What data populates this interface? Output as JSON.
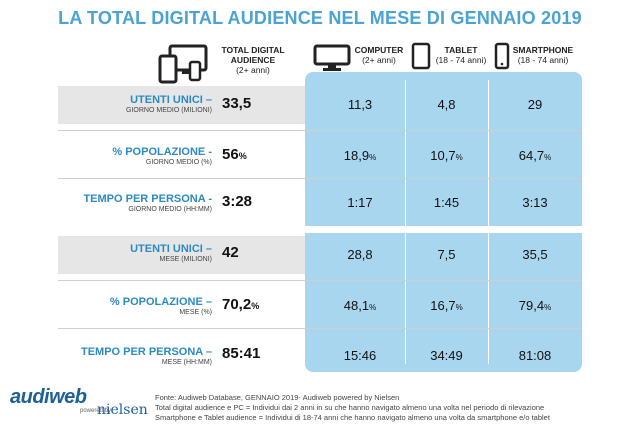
{
  "title": "LA TOTAL DIGITAL AUDIENCE NEL MESE DI GENNAIO 2019",
  "headers": {
    "total": {
      "main": "TOTAL DIGITAL AUDIENCE",
      "sub": "(2+ anni)"
    },
    "computer": {
      "main": "COMPUTER",
      "sub": "(2+ anni)"
    },
    "tablet": {
      "main": "TABLET",
      "sub": "(18 - 74 anni)"
    },
    "smartphone": {
      "main": "SMARTPHONE",
      "sub": "(18 - 74 anni)"
    }
  },
  "rows": [
    {
      "label": "UTENTI UNICI –",
      "sub": "GIORNO MEDIO (MILIONI)",
      "total": "33,5",
      "total_unit": "",
      "computer": "11,3",
      "computer_unit": "",
      "tablet": "4,8",
      "tablet_unit": "",
      "smartphone": "29",
      "smartphone_unit": ""
    },
    {
      "label": "% POPOLAZIONE -",
      "sub": "GIORNO MEDIO (%)",
      "total": "56",
      "total_unit": "%",
      "computer": "18,9",
      "computer_unit": "%",
      "tablet": "10,7",
      "tablet_unit": "%",
      "smartphone": "64,7",
      "smartphone_unit": "%"
    },
    {
      "label": "TEMPO PER PERSONA -",
      "sub": "GIORNO MEDIO (HH:MM)",
      "total": "3:28",
      "total_unit": "",
      "computer": "1:17",
      "computer_unit": "",
      "tablet": "1:45",
      "tablet_unit": "",
      "smartphone": "3:13",
      "smartphone_unit": ""
    },
    {
      "label": "UTENTI UNICI –",
      "sub": "MESE (MILIONI)",
      "total": "42",
      "total_unit": "",
      "computer": "28,8",
      "computer_unit": "",
      "tablet": "7,5",
      "tablet_unit": "",
      "smartphone": "35,5",
      "smartphone_unit": ""
    },
    {
      "label": "% POPOLAZIONE –",
      "sub": "MESE (%)",
      "total": "70,2",
      "total_unit": "%",
      "computer": "48,1",
      "computer_unit": "%",
      "tablet": "16,7",
      "tablet_unit": "%",
      "smartphone": "79,4",
      "smartphone_unit": "%"
    },
    {
      "label": "TEMPO PER PERSONA –",
      "sub": "MESE (HH:MM)",
      "total": "85:41",
      "total_unit": "",
      "computer": "15:46",
      "computer_unit": "",
      "tablet": "34:49",
      "tablet_unit": "",
      "smartphone": "81:08",
      "smartphone_unit": ""
    }
  ],
  "footer": {
    "line1": "Fonte: Audiweb Database, GENNAIO 2019- Audiweb powered by Nielsen",
    "line2": "Total digital audience e PC = Individui dai 2 anni in su che hanno navigato almeno una volta nel periodo di rilevazione",
    "line3": "Smartphone e Tablet audience = Individui di 18-74 anni che hanno navigato almeno una volta da smartphone e/o tablet"
  },
  "logo": {
    "name": "audiweb",
    "powered": "powered by",
    "partner": "nielsen"
  },
  "colors": {
    "title": "#4aa3d4",
    "label": "#2c8ac2",
    "panel": "#a8d6ee",
    "row_bg": "#e6e6e6"
  },
  "icons": [
    "multi-device-icon",
    "computer-icon",
    "tablet-icon",
    "smartphone-icon"
  ]
}
